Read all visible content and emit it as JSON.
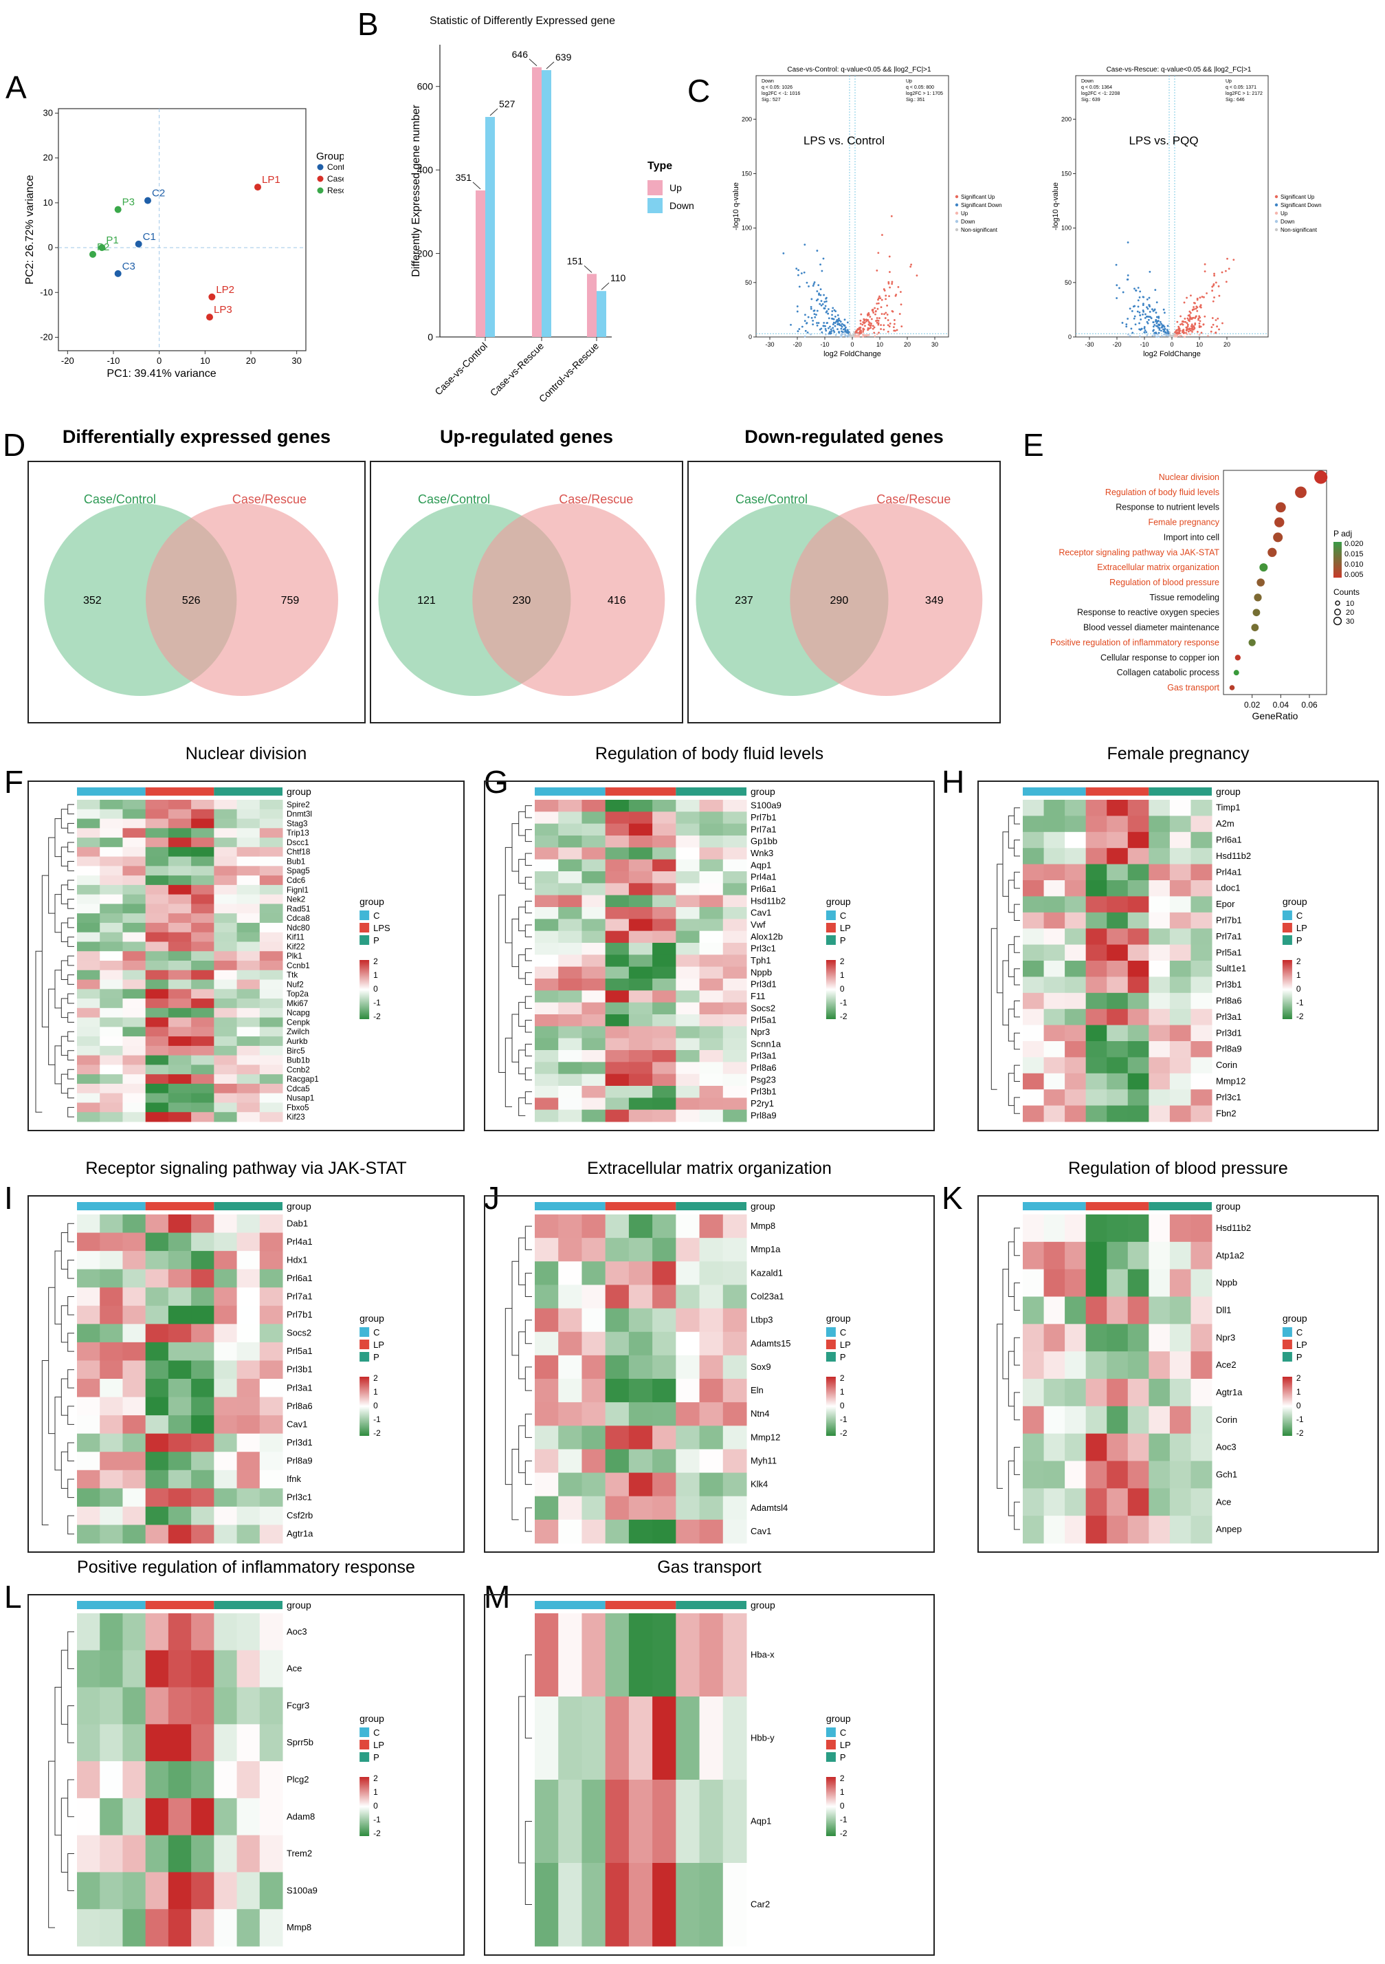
{
  "letters": [
    "A",
    "B",
    "C",
    "D",
    "E",
    "F",
    "G",
    "H",
    "I",
    "J",
    "K",
    "L",
    "M"
  ],
  "colors": {
    "control": "#1f5fa8",
    "case": "#d73027",
    "rescue": "#3aa84a",
    "up": "#f2a9bd",
    "down": "#7fd1f0",
    "venn_left": "#8ccfa5",
    "venn_right": "#ee9b9b",
    "heat_hi": "#c62828",
    "heat_mid": "#ffffff",
    "heat_lo": "#2e8b3e",
    "grp_c": "#41b6d6",
    "grp_lp": "#e0473b",
    "grp_p": "#2a9d84"
  },
  "pca": {
    "legend_title": "Group",
    "legend_items": [
      "Control",
      "Case",
      "Rescue"
    ],
    "xlabel": "PC1: 39.41% variance",
    "ylabel": "PC2: 26.72% variance",
    "x_ticks": [
      "-20",
      "-10",
      "0",
      "10",
      "20",
      "30"
    ],
    "y_ticks": [
      "30",
      "20",
      "10",
      "0",
      "-10",
      "-20"
    ]
  },
  "chart_data": [
    {
      "type": "scatter",
      "panel": "A",
      "title": "",
      "xlabel": "PC1: 39.41% variance",
      "ylabel": "PC2: 26.72% variance",
      "xlim": [
        -22,
        32
      ],
      "ylim": [
        -23,
        31
      ],
      "points": [
        {
          "label": "C1",
          "group": "Control",
          "x": -4.5,
          "y": 0.8
        },
        {
          "label": "C2",
          "group": "Control",
          "x": -2.5,
          "y": 10.5
        },
        {
          "label": "C3",
          "group": "Control",
          "x": -9,
          "y": -5.8
        },
        {
          "label": "LP1",
          "group": "Case",
          "x": 21.5,
          "y": 13.5
        },
        {
          "label": "LP2",
          "group": "Case",
          "x": 11.5,
          "y": -11
        },
        {
          "label": "LP3",
          "group": "Case",
          "x": 11,
          "y": -15.5
        },
        {
          "label": "P1",
          "group": "Rescue",
          "x": -12.5,
          "y": 0
        },
        {
          "label": "P2",
          "group": "Rescue",
          "x": -14.5,
          "y": -1.5
        },
        {
          "label": "P3",
          "group": "Rescue",
          "x": -9,
          "y": 8.5
        }
      ]
    },
    {
      "type": "bar",
      "panel": "B",
      "title": "Statistic of Differently Expressed gene",
      "xlabel": "",
      "ylabel": "Differently Expressed gene number",
      "ylim": [
        0,
        700
      ],
      "y_ticks": [
        "0",
        "200",
        "400",
        "600"
      ],
      "categories": [
        "Case-vs-Control",
        "Case-vs-Rescue",
        "Control-vs-Rescue"
      ],
      "legend_title": "Type",
      "series": [
        {
          "name": "Up",
          "values": [
            351,
            646,
            151
          ]
        },
        {
          "name": "Down",
          "values": [
            527,
            639,
            110
          ]
        }
      ]
    },
    {
      "type": "scatter",
      "panel": "C",
      "subtype": "volcano",
      "plots": [
        {
          "title": "Case-vs-Control: q-value<0.05 && |log2_FC|>1",
          "inset_label": "LPS vs. Control",
          "stats_left": [
            "Down",
            "q < 0.05: 1026",
            "log2FC < -1: 1016",
            "Sig.: 527"
          ],
          "stats_right": [
            "Up",
            "q < 0.05: 800",
            "log2FC > 1: 1705",
            "Sig.: 351"
          ],
          "xlabel": "log2 FoldChange",
          "ylabel": "-log10 q-value",
          "x_ticks": [
            "-30",
            "-20",
            "-10",
            "0",
            "10",
            "20",
            "30"
          ],
          "y_ticks": [
            "0",
            "50",
            "100",
            "150",
            "200"
          ],
          "legend": [
            "Significant Up",
            "Significant Down",
            "Up",
            "Down",
            "Non-significant"
          ]
        },
        {
          "title": "Case-vs-Rescue: q-value<0.05 && |log2_FC|>1",
          "inset_label": "LPS vs. PQQ",
          "stats_left": [
            "Down",
            "q < 0.05: 1364",
            "log2FC < -1: 2208",
            "Sig.: 639"
          ],
          "stats_right": [
            "Up",
            "q < 0.05: 1371",
            "log2FC > 1: 2172",
            "Sig.: 646"
          ],
          "xlabel": "log2 FoldChange",
          "ylabel": "-log10 q-value",
          "x_ticks": [
            "-30",
            "-20",
            "-10",
            "0",
            "10",
            "20"
          ],
          "y_ticks": [
            "0",
            "50",
            "100",
            "150",
            "200"
          ],
          "legend": [
            "Significant Up",
            "Significant Down",
            "Up",
            "Down",
            "Non-significant"
          ]
        }
      ]
    },
    {
      "type": "table",
      "panel": "D",
      "subtype": "venn",
      "sets": [
        {
          "title": "Differentially expressed genes",
          "left": "Case/Control",
          "right": "Case/Rescue",
          "left_only": 352,
          "both": 526,
          "right_only": 759
        },
        {
          "title": "Up-regulated genes",
          "left": "Case/Control",
          "right": "Case/Rescue",
          "left_only": 121,
          "both": 230,
          "right_only": 416
        },
        {
          "title": "Down-regulated genes",
          "left": "Case/Control",
          "right": "Case/Rescue",
          "left_only": 237,
          "both": 290,
          "right_only": 349
        }
      ]
    },
    {
      "type": "scatter",
      "panel": "E",
      "subtype": "dotplot",
      "xlabel": "GeneRatio",
      "x_ticks": [
        "0.02",
        "0.04",
        "0.06"
      ],
      "xlim": [
        0.0,
        0.072
      ],
      "legend_padj_title": "P adj",
      "padj_ticks": [
        "0.020",
        "0.015",
        "0.010",
        "0.005"
      ],
      "legend_counts_title": "Counts",
      "count_ticks": [
        "10",
        "20",
        "30"
      ],
      "terms": [
        {
          "name": "Nuclear division",
          "ratio": 0.068,
          "count": 33,
          "padj": 0.002,
          "orange": true
        },
        {
          "name": "Regulation of body fluid levels",
          "ratio": 0.054,
          "count": 27,
          "padj": 0.004,
          "orange": true
        },
        {
          "name": "Response to nutrient levels",
          "ratio": 0.04,
          "count": 22,
          "padj": 0.005,
          "orange": false
        },
        {
          "name": "Female pregnancy",
          "ratio": 0.039,
          "count": 21,
          "padj": 0.005,
          "orange": true
        },
        {
          "name": "Import into cell",
          "ratio": 0.038,
          "count": 20,
          "padj": 0.006,
          "orange": false
        },
        {
          "name": "Receptor signaling pathway via JAK-STAT",
          "ratio": 0.034,
          "count": 18,
          "padj": 0.006,
          "orange": true
        },
        {
          "name": "Extracellular matrix organization",
          "ratio": 0.028,
          "count": 15,
          "padj": 0.018,
          "orange": true
        },
        {
          "name": "Regulation of blood pressure",
          "ratio": 0.026,
          "count": 14,
          "padj": 0.009,
          "orange": true
        },
        {
          "name": "Tissue remodeling",
          "ratio": 0.024,
          "count": 13,
          "padj": 0.011,
          "orange": false
        },
        {
          "name": "Response to reactive oxygen species",
          "ratio": 0.023,
          "count": 12,
          "padj": 0.012,
          "orange": false
        },
        {
          "name": "Blood vessel diameter maintenance",
          "ratio": 0.022,
          "count": 12,
          "padj": 0.012,
          "orange": false
        },
        {
          "name": "Positive regulation of inflammatory response",
          "ratio": 0.02,
          "count": 11,
          "padj": 0.014,
          "orange": true
        },
        {
          "name": "Cellular response to copper ion",
          "ratio": 0.01,
          "count": 6,
          "padj": 0.003,
          "orange": false
        },
        {
          "name": "Collagen catabolic process",
          "ratio": 0.009,
          "count": 5,
          "padj": 0.019,
          "orange": false
        },
        {
          "name": "Gas transport",
          "ratio": 0.006,
          "count": 4,
          "padj": 0.004,
          "orange": true
        }
      ]
    },
    {
      "type": "heatmap",
      "panel": "F-M",
      "scale_ticks": [
        "2",
        "1",
        "0",
        "-1",
        "-2"
      ],
      "heatmaps": [
        {
          "letter": "F",
          "title": "Nuclear division",
          "groups": [
            "C",
            "LPS",
            "P"
          ],
          "genes": [
            "Spire2",
            "Dnmt3l",
            "Stag3",
            "Trip13",
            "Dscc1",
            "Chtf18",
            "Bub1",
            "Spag5",
            "Cdc6",
            "Fignl1",
            "Nek2",
            "Rad51",
            "Cdca8",
            "Ndc80",
            "Kif11",
            "Kif22",
            "Plk1",
            "Ccnb1",
            "Ttk",
            "Nuf2",
            "Top2a",
            "Mki67",
            "Ncapg",
            "Cenpk",
            "Zwilch",
            "Aurkb",
            "Birc5",
            "Bub1b",
            "Ccnb2",
            "Racgap1",
            "Cdca5",
            "Nusap1",
            "Fbxo5",
            "Kif23"
          ]
        },
        {
          "letter": "G",
          "title": "Regulation of body fluid levels",
          "groups": [
            "C",
            "LP",
            "P"
          ],
          "genes": [
            "S100a9",
            "Prl7b1",
            "Prl7a1",
            "Gp1bb",
            "Wnk3",
            "Aqp1",
            "Prl4a1",
            "Prl6a1",
            "Hsd11b2",
            "Cav1",
            "Vwf",
            "Alox12b",
            "Prl3c1",
            "Tph1",
            "Nppb",
            "Prl3d1",
            "F11",
            "Socs2",
            "Prl5a1",
            "Npr3",
            "Scnn1a",
            "Prl3a1",
            "Prl8a6",
            "Psg23",
            "Prl3b1",
            "P2ry1",
            "Prl8a9"
          ]
        },
        {
          "letter": "H",
          "title": "Female pregnancy",
          "groups": [
            "C",
            "LP",
            "P"
          ],
          "genes": [
            "Timp1",
            "A2m",
            "Prl6a1",
            "Hsd11b2",
            "Prl4a1",
            "Ldoc1",
            "Epor",
            "Prl7b1",
            "Prl7a1",
            "Prl5a1",
            "Sult1e1",
            "Prl3b1",
            "Prl8a6",
            "Prl3a1",
            "Prl3d1",
            "Prl8a9",
            "Corin",
            "Mmp12",
            "Prl3c1",
            "Fbn2"
          ]
        },
        {
          "letter": "I",
          "title": "Receptor signaling pathway via JAK-STAT",
          "groups": [
            "C",
            "LP",
            "P"
          ],
          "genes": [
            "Dab1",
            "Prl4a1",
            "Hdx1",
            "Prl6a1",
            "Prl7a1",
            "Prl7b1",
            "Socs2",
            "Prl5a1",
            "Prl3b1",
            "Prl3a1",
            "Prl8a6",
            "Cav1",
            "Prl3d1",
            "Prl8a9",
            "Ifnk",
            "Prl3c1",
            "Csf2rb",
            "Agtr1a"
          ]
        },
        {
          "letter": "J",
          "title": "Extracellular matrix organization",
          "groups": [
            "C",
            "LP",
            "P"
          ],
          "genes": [
            "Mmp8",
            "Mmp1a",
            "Kazald1",
            "Col23a1",
            "Ltbp3",
            "Adamts15",
            "Sox9",
            "Eln",
            "Ntn4",
            "Mmp12",
            "Myh11",
            "Klk4",
            "Adamtsl4",
            "Cav1"
          ]
        },
        {
          "letter": "K",
          "title": "Regulation of blood pressure",
          "groups": [
            "C",
            "LP",
            "P"
          ],
          "genes": [
            "Hsd11b2",
            "Atp1a2",
            "Nppb",
            "Dll1",
            "Npr3",
            "Ace2",
            "Agtr1a",
            "Corin",
            "Aoc3",
            "Gch1",
            "Ace",
            "Anpep"
          ]
        },
        {
          "letter": "L",
          "title": "Positive regulation of inflammatory response",
          "groups": [
            "C",
            "LP",
            "P"
          ],
          "genes": [
            "Aoc3",
            "Ace",
            "Fcgr3",
            "Sprr5b",
            "Plcg2",
            "Adam8",
            "Trem2",
            "S100a9",
            "Mmp8"
          ]
        },
        {
          "letter": "M",
          "title": "Gas transport",
          "groups": [
            "C",
            "LP",
            "P"
          ],
          "genes": [
            "Hba-x",
            "Hbb-y",
            "Aqp1",
            "Car2"
          ]
        }
      ]
    }
  ],
  "heat_group_label": "group"
}
